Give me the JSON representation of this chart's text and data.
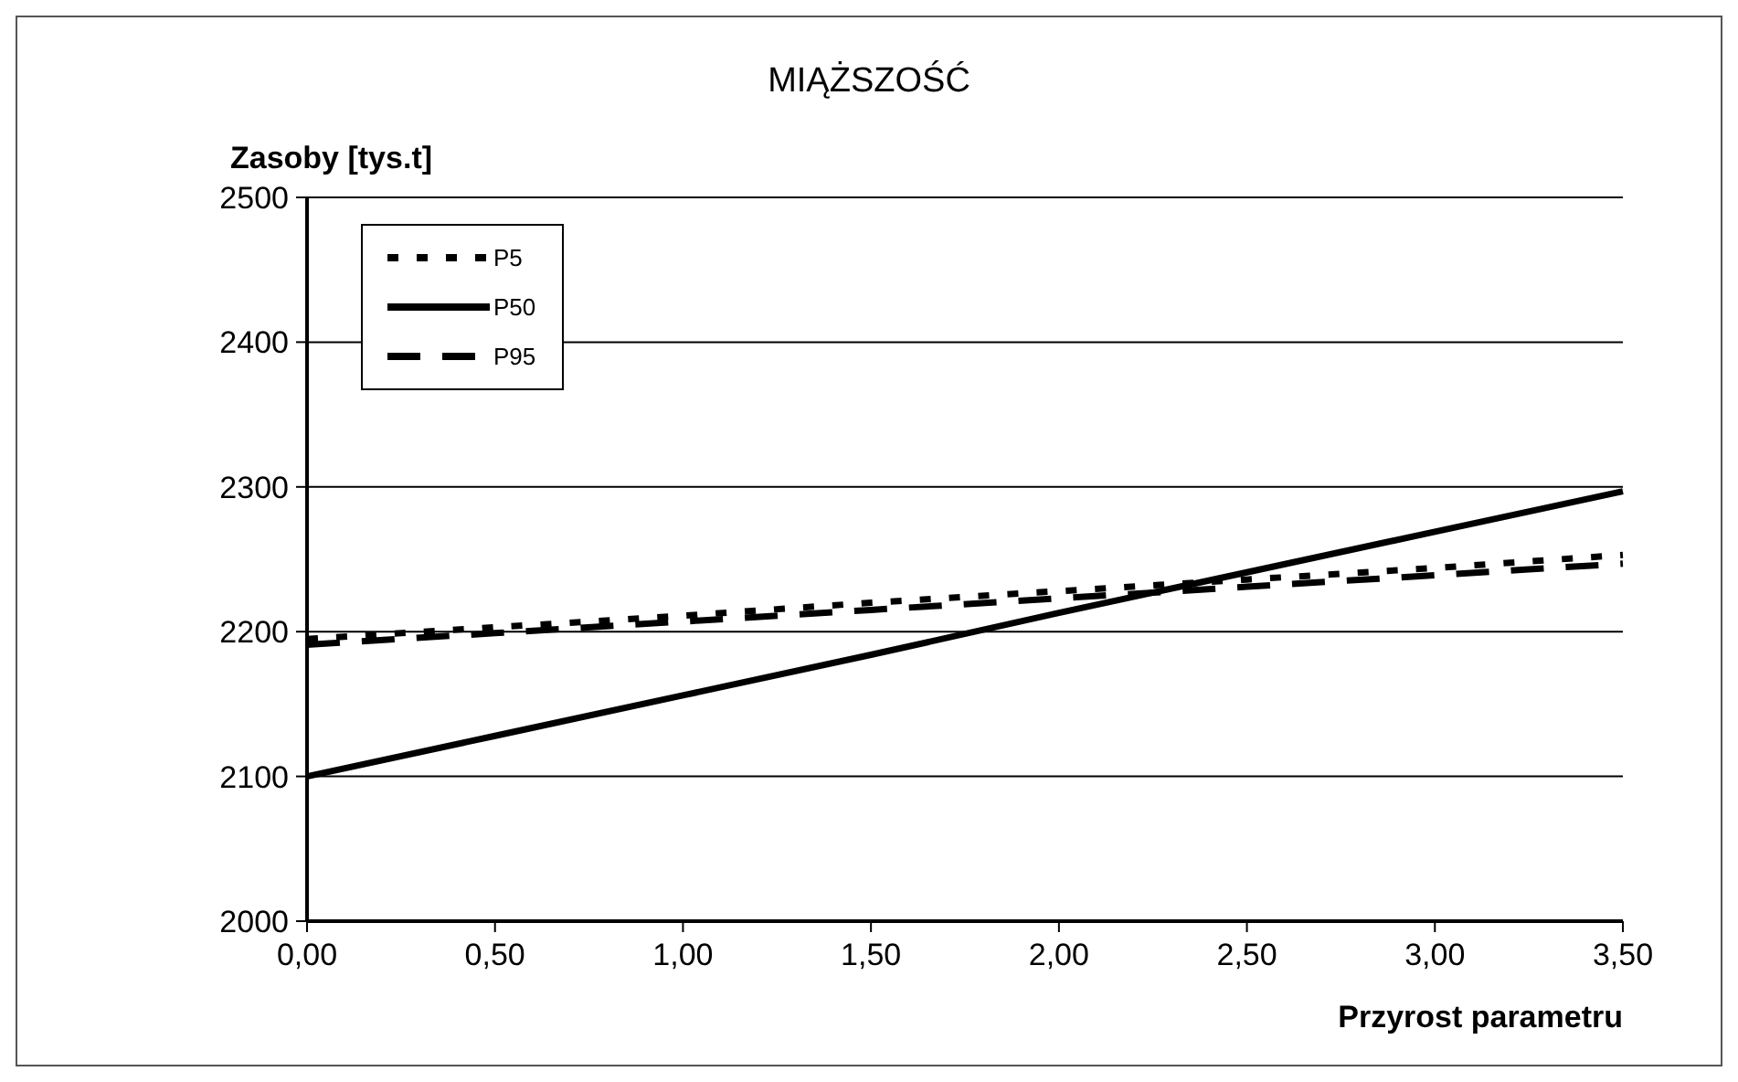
{
  "chart_data": {
    "type": "line",
    "title": "MIĄŻSZOŚĆ",
    "xlabel": "Przyrost parametru",
    "ylabel": "Zasoby [tys.t]",
    "x": [
      0,
      0.5,
      1,
      1.5,
      2,
      2.5,
      3,
      3.5
    ],
    "series": [
      {
        "name": "P5",
        "color": "#000000",
        "line_style": "dotted",
        "values": [
          2195,
          2203,
          2211,
          2220,
          2228,
          2236,
          2244,
          2253
        ]
      },
      {
        "name": "P50",
        "color": "#000000",
        "line_style": "solid",
        "values": [
          2100,
          2128,
          2156,
          2184,
          2213,
          2241,
          2269,
          2297
        ]
      },
      {
        "name": "P95",
        "color": "#000000",
        "line_style": "dashed",
        "values": [
          2191,
          2199,
          2207,
          2215,
          2223,
          2231,
          2239,
          2247
        ]
      }
    ],
    "xlim": [
      0,
      3.5
    ],
    "xticks": [
      {
        "value": 0,
        "label": "0,00"
      },
      {
        "value": 0.5,
        "label": "0,50"
      },
      {
        "value": 1,
        "label": "1,00"
      },
      {
        "value": 1.5,
        "label": "1,50"
      },
      {
        "value": 2,
        "label": "2,00"
      },
      {
        "value": 2.5,
        "label": "2,50"
      },
      {
        "value": 3,
        "label": "3,00"
      },
      {
        "value": 3.5,
        "label": "3,50"
      }
    ],
    "ylim": [
      2000,
      2500
    ],
    "yticks": [
      2000,
      2100,
      2200,
      2300,
      2400,
      2500
    ],
    "grid": "y",
    "legend": "top left",
    "marker": "none"
  }
}
